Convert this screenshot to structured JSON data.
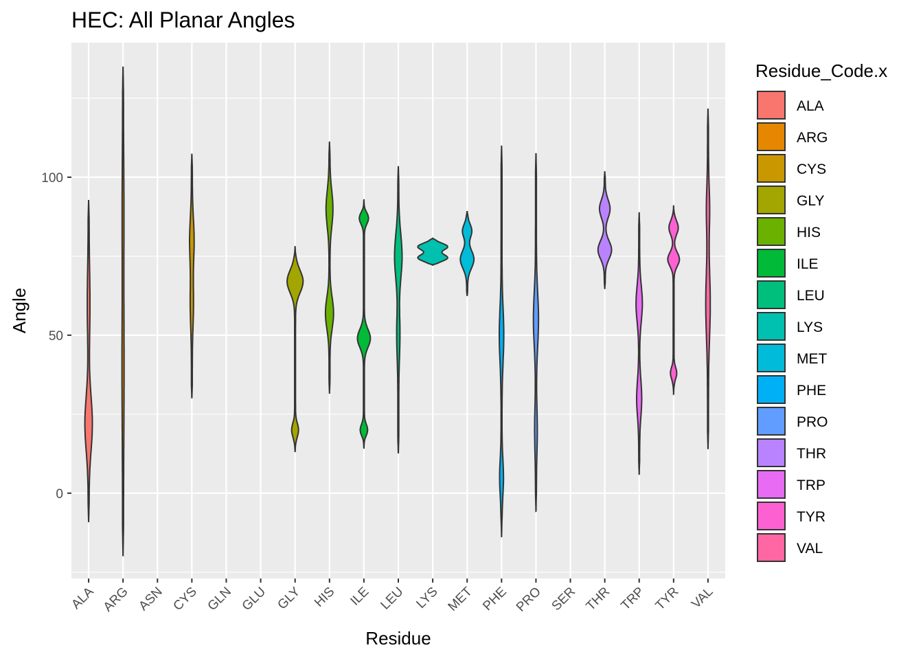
{
  "chart_data": {
    "type": "violin",
    "title": "HEC: All Planar Angles",
    "xlabel": "Residue",
    "ylabel": "Angle",
    "ylim": [
      -27,
      142.6
    ],
    "yticks": [
      0,
      50,
      100
    ],
    "grid": true,
    "legend": {
      "title": "Residue_Code.x",
      "placement": "right"
    },
    "categories": [
      "ALA",
      "ARG",
      "ASN",
      "CYS",
      "GLN",
      "GLU",
      "GLY",
      "HIS",
      "ILE",
      "LEU",
      "LYS",
      "MET",
      "PHE",
      "PRO",
      "SER",
      "THR",
      "TRP",
      "TYR",
      "VAL"
    ],
    "series": [
      {
        "name": "ALA",
        "color": "#F8766D",
        "min": -9,
        "max": 92.6,
        "peaks": [
          {
            "y": 22,
            "w": 0.22,
            "s": 12
          },
          {
            "y": 60,
            "w": 0.06,
            "s": 15
          }
        ]
      },
      {
        "name": "ARG",
        "color": "#E58700",
        "min": -19.6,
        "max": 134.8,
        "peaks": [
          {
            "y": 40,
            "w": 0.04,
            "s": 30
          },
          {
            "y": 90,
            "w": 0.03,
            "s": 20
          }
        ]
      },
      {
        "name": "CYS",
        "color": "#C99800",
        "min": 30.2,
        "max": 107.2,
        "peaks": [
          {
            "y": 80,
            "w": 0.12,
            "s": 10
          },
          {
            "y": 60,
            "w": 0.08,
            "s": 10
          }
        ]
      },
      {
        "name": "GLY",
        "color": "#A3A500",
        "min": 13,
        "max": 78,
        "peaks": [
          {
            "y": 67,
            "w": 0.5,
            "s": 5
          },
          {
            "y": 20,
            "w": 0.2,
            "s": 3
          }
        ]
      },
      {
        "name": "HIS",
        "color": "#6BB100",
        "min": 31.5,
        "max": 111.3,
        "peaks": [
          {
            "y": 90,
            "w": 0.2,
            "s": 8
          },
          {
            "y": 57,
            "w": 0.24,
            "s": 7
          }
        ]
      },
      {
        "name": "ILE",
        "color": "#00BA38",
        "min": 14.1,
        "max": 93,
        "peaks": [
          {
            "y": 87,
            "w": 0.28,
            "s": 2.5
          },
          {
            "y": 49,
            "w": 0.4,
            "s": 4
          },
          {
            "y": 20,
            "w": 0.22,
            "s": 2.5
          }
        ]
      },
      {
        "name": "LEU",
        "color": "#00BF7D",
        "min": 12.6,
        "max": 103.5,
        "peaks": [
          {
            "y": 75,
            "w": 0.22,
            "s": 10
          },
          {
            "y": 50,
            "w": 0.08,
            "s": 10
          }
        ]
      },
      {
        "name": "LYS",
        "color": "#00C0AF",
        "min": 72.2,
        "max": 80.7,
        "peaks": [
          {
            "y": 78,
            "w": 0.95,
            "s": 1.6
          },
          {
            "y": 74.5,
            "w": 0.95,
            "s": 1.6
          }
        ]
      },
      {
        "name": "MET",
        "color": "#00BCD8",
        "min": 62.4,
        "max": 89.3,
        "peaks": [
          {
            "y": 74,
            "w": 0.42,
            "s": 4
          },
          {
            "y": 83,
            "w": 0.28,
            "s": 3
          }
        ]
      },
      {
        "name": "PHE",
        "color": "#00B0F6",
        "min": -13.9,
        "max": 110,
        "peaks": [
          {
            "y": 50,
            "w": 0.12,
            "s": 12
          },
          {
            "y": 5,
            "w": 0.1,
            "s": 8
          }
        ]
      },
      {
        "name": "PRO",
        "color": "#619CFF",
        "min": -5.6,
        "max": 107.4,
        "peaks": [
          {
            "y": 55,
            "w": 0.14,
            "s": 12
          },
          {
            "y": 20,
            "w": 0.06,
            "s": 10
          }
        ]
      },
      {
        "name": "THR",
        "color": "#B983FF",
        "min": 64.8,
        "max": 101.7,
        "peaks": [
          {
            "y": 90,
            "w": 0.32,
            "s": 4
          },
          {
            "y": 77,
            "w": 0.42,
            "s": 4
          }
        ]
      },
      {
        "name": "TRP",
        "color": "#E76BF3",
        "min": 6,
        "max": 88.7,
        "peaks": [
          {
            "y": 60,
            "w": 0.18,
            "s": 8
          },
          {
            "y": 30,
            "w": 0.14,
            "s": 8
          }
        ]
      },
      {
        "name": "TYR",
        "color": "#FD61D1",
        "min": 31.5,
        "max": 90.9,
        "peaks": [
          {
            "y": 74,
            "w": 0.36,
            "s": 3
          },
          {
            "y": 84,
            "w": 0.28,
            "s": 3
          },
          {
            "y": 38,
            "w": 0.18,
            "s": 2.5
          }
        ]
      },
      {
        "name": "VAL",
        "color": "#FF67A4",
        "min": 14.3,
        "max": 121.5,
        "peaks": [
          {
            "y": 60,
            "w": 0.12,
            "s": 15
          },
          {
            "y": 90,
            "w": 0.08,
            "s": 10
          }
        ]
      }
    ]
  }
}
